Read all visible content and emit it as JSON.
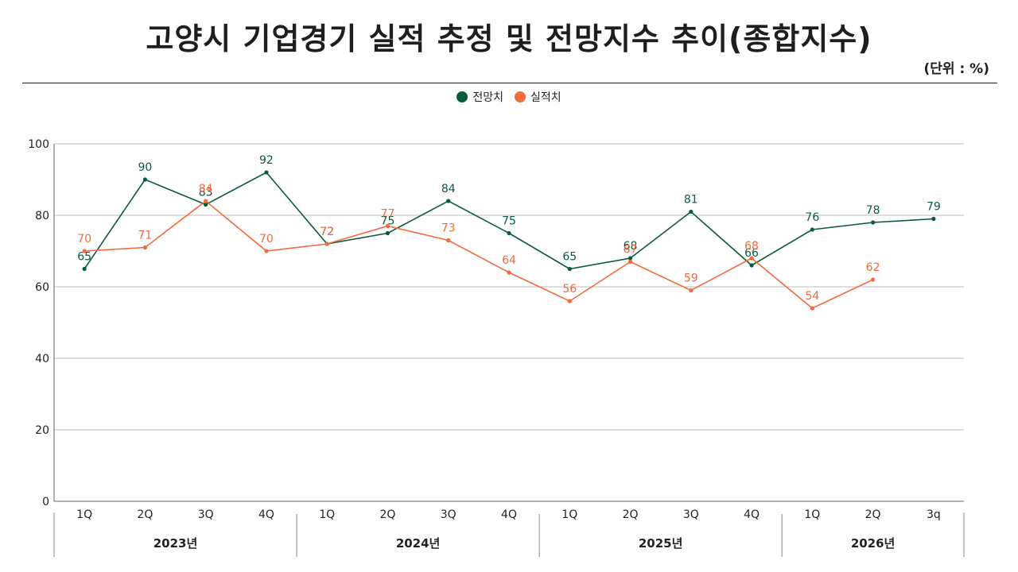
{
  "title": "고양시 기업경기 실적 추정 및 전망지수 추이(종합지수)",
  "unit_label": "(단위 : %)",
  "colors": {
    "forecast": "#0b5a3c",
    "actual": "#f26a3f",
    "grid": "#bdbdbd"
  },
  "chart_data": {
    "type": "line",
    "title": "고양시 기업경기 실적 추정 및 전망지수 추이(종합지수)",
    "categories": [
      "1Q",
      "2Q",
      "3Q",
      "4Q",
      "1Q",
      "2Q",
      "3Q",
      "4Q",
      "1Q",
      "2Q",
      "3Q",
      "4Q",
      "1Q",
      "2Q",
      "3q"
    ],
    "year_groups": [
      {
        "label": "2023년",
        "start": 0,
        "end": 3
      },
      {
        "label": "2024년",
        "start": 4,
        "end": 7
      },
      {
        "label": "2025년",
        "start": 8,
        "end": 11
      },
      {
        "label": "2026년",
        "start": 12,
        "end": 14
      }
    ],
    "series": [
      {
        "name": "전망치",
        "values": [
          65,
          90,
          83,
          92,
          72,
          75,
          84,
          75,
          65,
          68,
          81,
          66,
          76,
          78,
          79
        ]
      },
      {
        "name": "실적치",
        "values": [
          70,
          71,
          84,
          70,
          72,
          77,
          73,
          64,
          56,
          67,
          59,
          68,
          54,
          62,
          null
        ]
      }
    ],
    "yticks": [
      0,
      20,
      40,
      60,
      80,
      100
    ],
    "ylim": [
      0,
      100
    ],
    "grid": true,
    "legend_position": "top-center"
  }
}
